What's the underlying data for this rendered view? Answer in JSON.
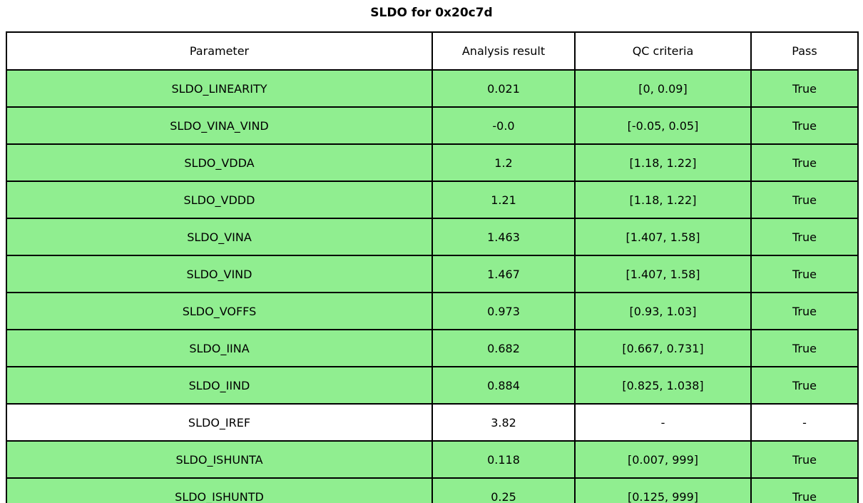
{
  "title": "SLDO for 0x20c7d",
  "colors": {
    "pass_row": "#90ee90",
    "neutral_row": "#ffffff",
    "border": "#000000",
    "text": "#000000"
  },
  "chart_data": {
    "type": "table",
    "title": "SLDO for 0x20c7d",
    "columns": [
      "Parameter",
      "Analysis result",
      "QC criteria",
      "Pass"
    ],
    "rows": [
      {
        "parameter": "SLDO_LINEARITY",
        "result": "0.021",
        "criteria": "[0, 0.09]",
        "pass": "True",
        "highlight": true
      },
      {
        "parameter": "SLDO_VINA_VIND",
        "result": "-0.0",
        "criteria": "[-0.05, 0.05]",
        "pass": "True",
        "highlight": true
      },
      {
        "parameter": "SLDO_VDDA",
        "result": "1.2",
        "criteria": "[1.18, 1.22]",
        "pass": "True",
        "highlight": true
      },
      {
        "parameter": "SLDO_VDDD",
        "result": "1.21",
        "criteria": "[1.18, 1.22]",
        "pass": "True",
        "highlight": true
      },
      {
        "parameter": "SLDO_VINA",
        "result": "1.463",
        "criteria": "[1.407, 1.58]",
        "pass": "True",
        "highlight": true
      },
      {
        "parameter": "SLDO_VIND",
        "result": "1.467",
        "criteria": "[1.407, 1.58]",
        "pass": "True",
        "highlight": true
      },
      {
        "parameter": "SLDO_VOFFS",
        "result": "0.973",
        "criteria": "[0.93, 1.03]",
        "pass": "True",
        "highlight": true
      },
      {
        "parameter": "SLDO_IINA",
        "result": "0.682",
        "criteria": "[0.667, 0.731]",
        "pass": "True",
        "highlight": true
      },
      {
        "parameter": "SLDO_IIND",
        "result": "0.884",
        "criteria": "[0.825, 1.038]",
        "pass": "True",
        "highlight": true
      },
      {
        "parameter": "SLDO_IREF",
        "result": "3.82",
        "criteria": "-",
        "pass": "-",
        "highlight": false
      },
      {
        "parameter": "SLDO_ISHUNTA",
        "result": "0.118",
        "criteria": "[0.007, 999]",
        "pass": "True",
        "highlight": true
      },
      {
        "parameter": "SLDO_ISHUNTD",
        "result": "0.25",
        "criteria": "[0.125, 999]",
        "pass": "True",
        "highlight": true
      }
    ]
  }
}
